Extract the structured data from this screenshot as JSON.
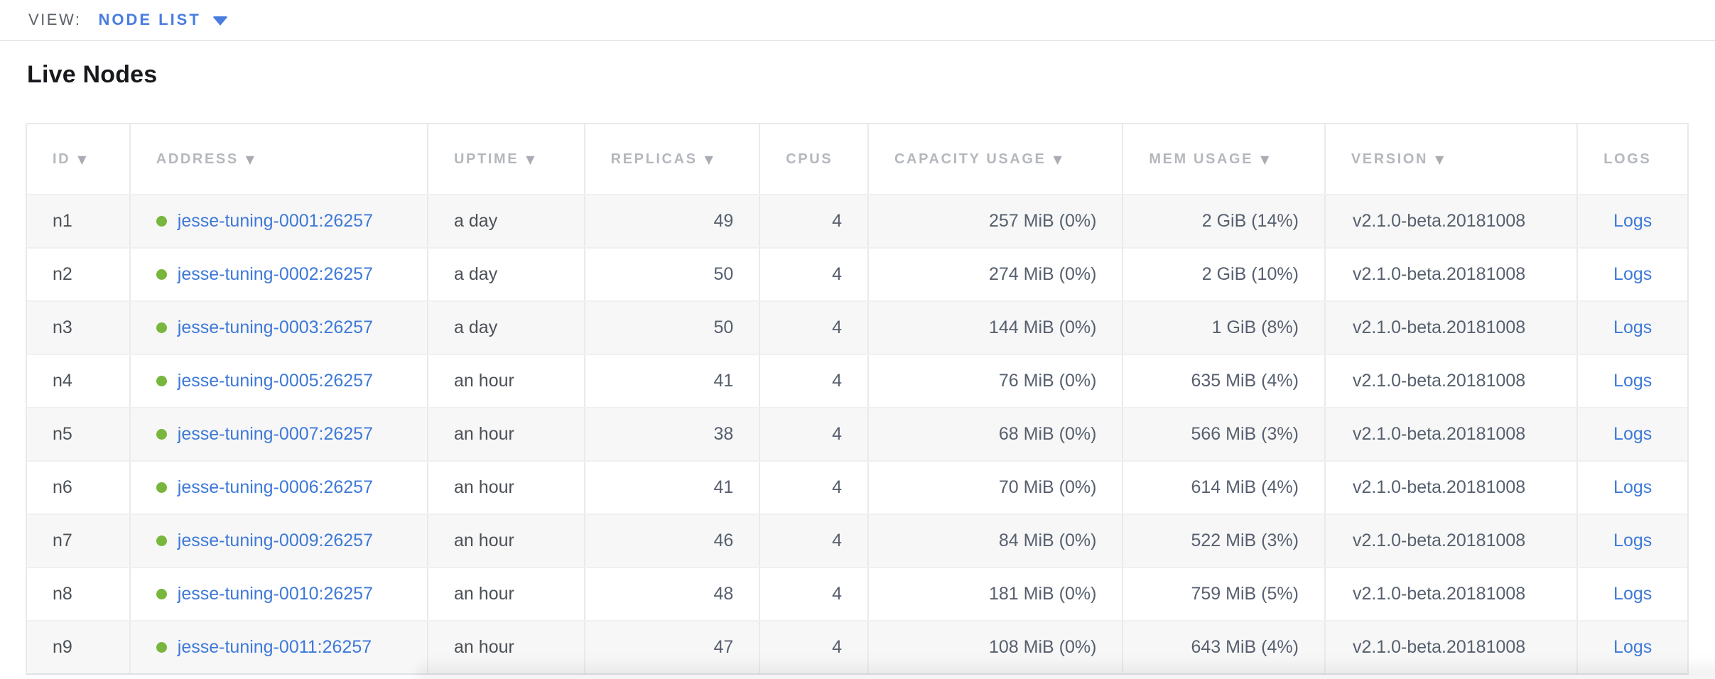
{
  "view_bar": {
    "label": "VIEW:",
    "selected": "NODE LIST"
  },
  "page": {
    "title": "Live Nodes"
  },
  "colors": {
    "accent_blue": "#4a7de2",
    "link_blue": "#3e79d8",
    "node_status_green": "#79b63d",
    "header_gray": "#b4b8bd",
    "zebra_row": "#f7f7f7"
  },
  "table": {
    "sort_indicator": "▼",
    "columns": [
      {
        "key": "id",
        "label": "ID",
        "sortable": true
      },
      {
        "key": "address",
        "label": "ADDRESS",
        "sortable": true
      },
      {
        "key": "uptime",
        "label": "UPTIME",
        "sortable": true
      },
      {
        "key": "replicas",
        "label": "REPLICAS",
        "sortable": true
      },
      {
        "key": "cpus",
        "label": "CPUS",
        "sortable": false
      },
      {
        "key": "capacity_usage",
        "label": "CAPACITY USAGE",
        "sortable": true
      },
      {
        "key": "mem_usage",
        "label": "MEM USAGE",
        "sortable": true
      },
      {
        "key": "version",
        "label": "VERSION",
        "sortable": true
      },
      {
        "key": "logs",
        "label": "LOGS",
        "sortable": false
      }
    ],
    "rows": [
      {
        "id": "n1",
        "status": "live",
        "address": "jesse-tuning-0001:26257",
        "uptime": "a day",
        "replicas": "49",
        "cpus": "4",
        "capacity_usage": "257 MiB (0%)",
        "mem_usage": "2 GiB (14%)",
        "version": "v2.1.0-beta.20181008",
        "logs_label": "Logs"
      },
      {
        "id": "n2",
        "status": "live",
        "address": "jesse-tuning-0002:26257",
        "uptime": "a day",
        "replicas": "50",
        "cpus": "4",
        "capacity_usage": "274 MiB (0%)",
        "mem_usage": "2 GiB (10%)",
        "version": "v2.1.0-beta.20181008",
        "logs_label": "Logs"
      },
      {
        "id": "n3",
        "status": "live",
        "address": "jesse-tuning-0003:26257",
        "uptime": "a day",
        "replicas": "50",
        "cpus": "4",
        "capacity_usage": "144 MiB (0%)",
        "mem_usage": "1 GiB (8%)",
        "version": "v2.1.0-beta.20181008",
        "logs_label": "Logs"
      },
      {
        "id": "n4",
        "status": "live",
        "address": "jesse-tuning-0005:26257",
        "uptime": "an hour",
        "replicas": "41",
        "cpus": "4",
        "capacity_usage": "76 MiB (0%)",
        "mem_usage": "635 MiB (4%)",
        "version": "v2.1.0-beta.20181008",
        "logs_label": "Logs"
      },
      {
        "id": "n5",
        "status": "live",
        "address": "jesse-tuning-0007:26257",
        "uptime": "an hour",
        "replicas": "38",
        "cpus": "4",
        "capacity_usage": "68 MiB (0%)",
        "mem_usage": "566 MiB (3%)",
        "version": "v2.1.0-beta.20181008",
        "logs_label": "Logs"
      },
      {
        "id": "n6",
        "status": "live",
        "address": "jesse-tuning-0006:26257",
        "uptime": "an hour",
        "replicas": "41",
        "cpus": "4",
        "capacity_usage": "70 MiB (0%)",
        "mem_usage": "614 MiB (4%)",
        "version": "v2.1.0-beta.20181008",
        "logs_label": "Logs"
      },
      {
        "id": "n7",
        "status": "live",
        "address": "jesse-tuning-0009:26257",
        "uptime": "an hour",
        "replicas": "46",
        "cpus": "4",
        "capacity_usage": "84 MiB (0%)",
        "mem_usage": "522 MiB (3%)",
        "version": "v2.1.0-beta.20181008",
        "logs_label": "Logs"
      },
      {
        "id": "n8",
        "status": "live",
        "address": "jesse-tuning-0010:26257",
        "uptime": "an hour",
        "replicas": "48",
        "cpus": "4",
        "capacity_usage": "181 MiB (0%)",
        "mem_usage": "759 MiB (5%)",
        "version": "v2.1.0-beta.20181008",
        "logs_label": "Logs"
      },
      {
        "id": "n9",
        "status": "live",
        "address": "jesse-tuning-0011:26257",
        "uptime": "an hour",
        "replicas": "47",
        "cpus": "4",
        "capacity_usage": "108 MiB (0%)",
        "mem_usage": "643 MiB (4%)",
        "version": "v2.1.0-beta.20181008",
        "logs_label": "Logs"
      }
    ]
  }
}
